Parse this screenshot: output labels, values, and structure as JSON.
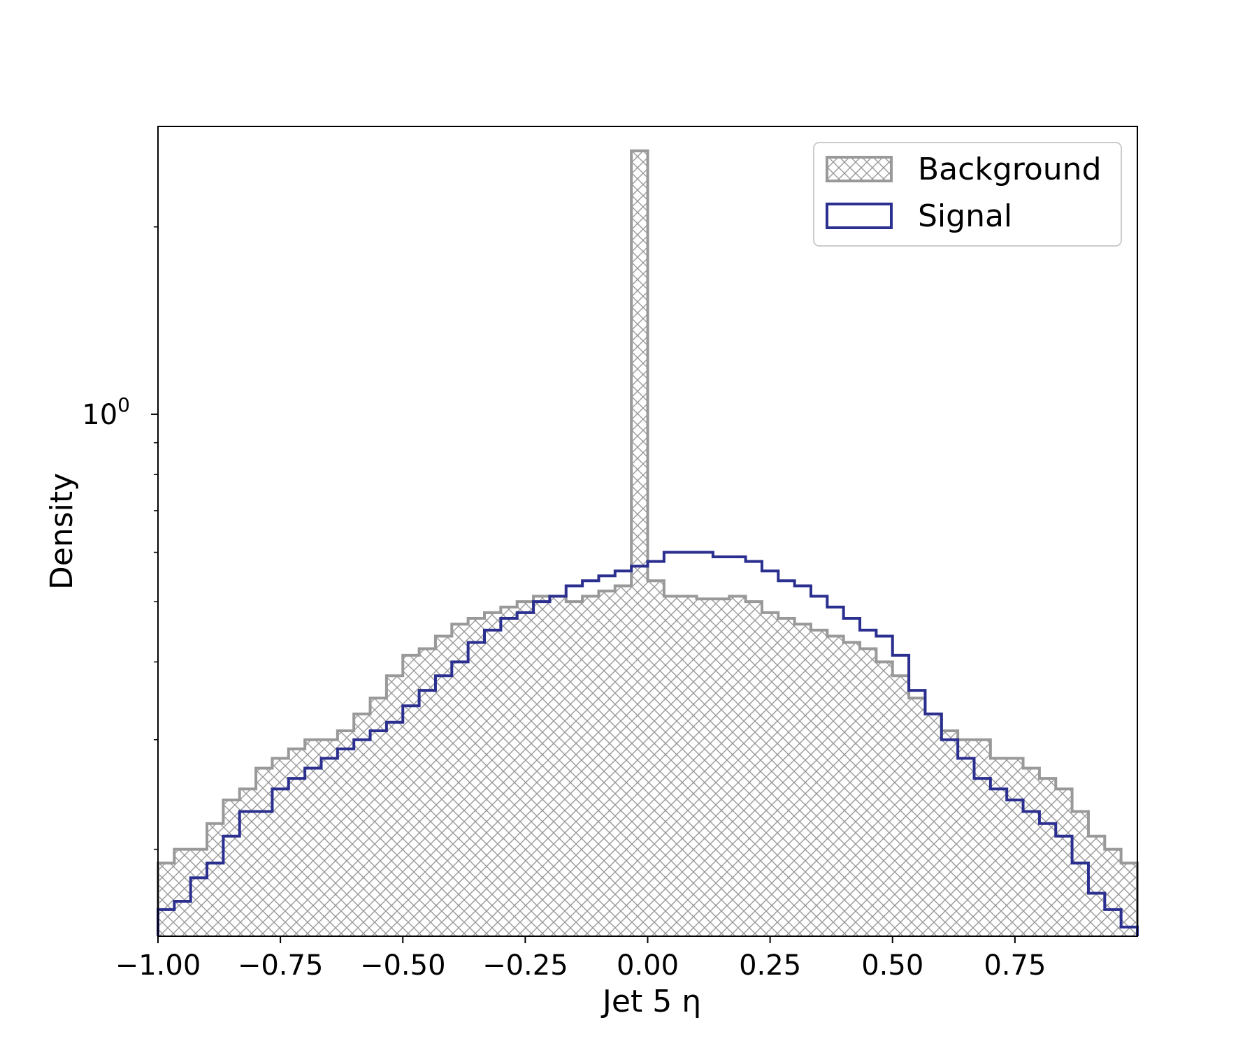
{
  "chart_data": {
    "type": "histogram",
    "title": "",
    "xlabel": "Jet 5 η",
    "ylabel": "Density",
    "xlim": [
      -1.0,
      1.0
    ],
    "ylim": [
      0.145,
      2.9
    ],
    "yscale": "log",
    "grid": false,
    "legend_position": "top-right",
    "x_tick_labels": [
      "−1.00",
      "−0.75",
      "−0.50",
      "−0.25",
      "0.00",
      "0.25",
      "0.50",
      "0.75"
    ],
    "x_ticks": [
      -1.0,
      -0.75,
      -0.5,
      -0.25,
      0.0,
      0.25,
      0.5,
      0.75
    ],
    "y_major_tick": {
      "value": 1.0,
      "base": "10",
      "exponent": "0"
    },
    "y_minor_ticks": [
      0.2,
      0.3,
      0.4,
      0.5,
      0.6,
      0.7,
      0.8,
      0.9,
      2.0
    ],
    "bin_edges_start": -1.0,
    "bin_width": 0.0333,
    "series": [
      {
        "name": "Background",
        "color": "#999999",
        "style": "hatched",
        "values": [
          0.19,
          0.2,
          0.2,
          0.22,
          0.24,
          0.25,
          0.27,
          0.28,
          0.29,
          0.3,
          0.3,
          0.31,
          0.33,
          0.35,
          0.38,
          0.41,
          0.42,
          0.44,
          0.46,
          0.47,
          0.48,
          0.49,
          0.5,
          0.51,
          0.51,
          0.5,
          0.51,
          0.52,
          0.53,
          2.65,
          0.54,
          0.51,
          0.51,
          0.505,
          0.505,
          0.51,
          0.5,
          0.48,
          0.47,
          0.46,
          0.45,
          0.44,
          0.43,
          0.42,
          0.4,
          0.38,
          0.35,
          0.33,
          0.31,
          0.3,
          0.3,
          0.28,
          0.28,
          0.27,
          0.26,
          0.25,
          0.23,
          0.21,
          0.2,
          0.19
        ]
      },
      {
        "name": "Signal",
        "color": "#2b2f8f",
        "style": "step",
        "values": [
          0.16,
          0.165,
          0.18,
          0.19,
          0.21,
          0.23,
          0.23,
          0.25,
          0.26,
          0.27,
          0.28,
          0.29,
          0.3,
          0.31,
          0.32,
          0.34,
          0.36,
          0.38,
          0.4,
          0.43,
          0.45,
          0.47,
          0.48,
          0.5,
          0.51,
          0.53,
          0.54,
          0.55,
          0.56,
          0.57,
          0.58,
          0.6,
          0.6,
          0.6,
          0.59,
          0.59,
          0.58,
          0.56,
          0.54,
          0.53,
          0.51,
          0.49,
          0.47,
          0.45,
          0.44,
          0.41,
          0.36,
          0.33,
          0.3,
          0.28,
          0.26,
          0.25,
          0.24,
          0.23,
          0.22,
          0.21,
          0.19,
          0.17,
          0.16,
          0.15
        ],
        "note_values": []
      }
    ]
  }
}
